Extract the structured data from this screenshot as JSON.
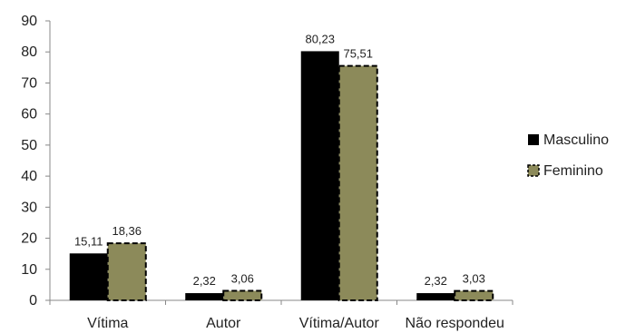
{
  "chart_data": {
    "type": "bar",
    "categories": [
      "Vítima",
      "Autor",
      "Vítima/Autor",
      "Não respondeu"
    ],
    "series": [
      {
        "name": "Masculino",
        "values": [
          15.11,
          2.32,
          80.23,
          2.32
        ],
        "labels": [
          "15,11",
          "2,32",
          "80,23",
          "2,32"
        ],
        "color": "#000000"
      },
      {
        "name": "Feminino",
        "values": [
          18.36,
          3.06,
          75.51,
          3.03
        ],
        "labels": [
          "18,36",
          "3,06",
          "75,51",
          "3,03"
        ],
        "color": "#8c8a5a"
      }
    ],
    "ylim": [
      0,
      90
    ],
    "yticks": [
      "0",
      "10",
      "20",
      "30",
      "40",
      "50",
      "60",
      "70",
      "80",
      "90"
    ],
    "grid": false,
    "legend_position": "right"
  }
}
